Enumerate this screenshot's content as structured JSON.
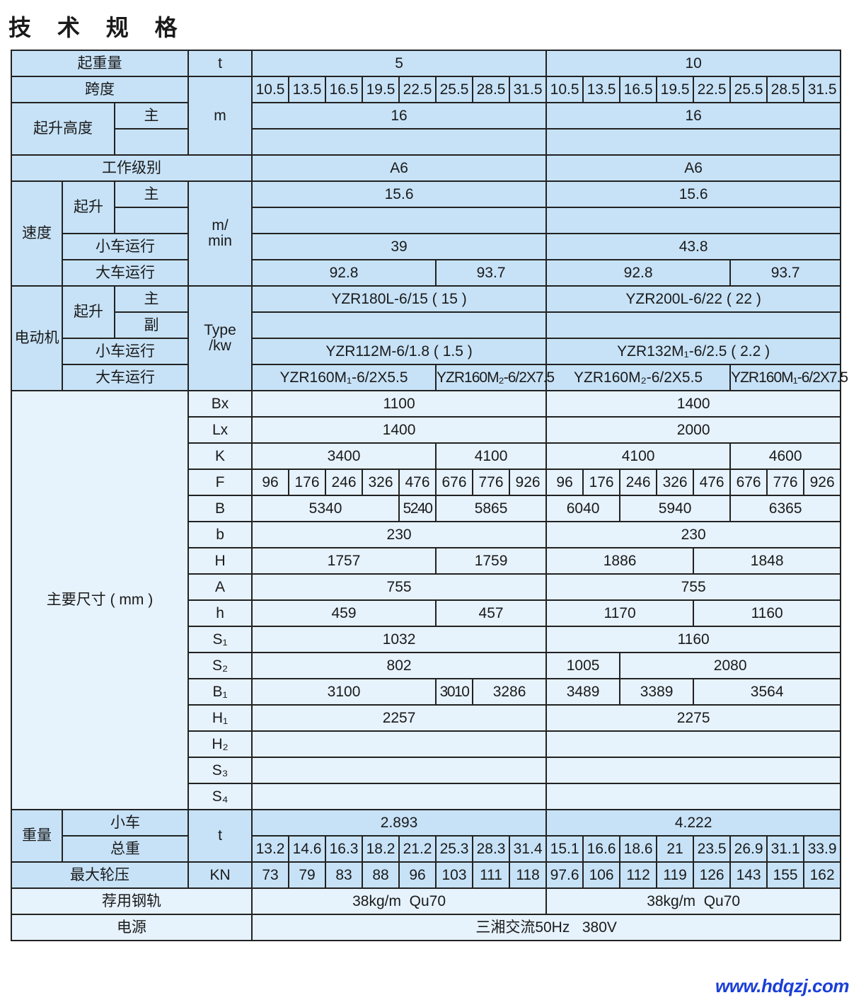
{
  "title": "技 术 规 格",
  "watermark": "www.hdqzj.com",
  "colors": {
    "header_bg": "#c7e2f7",
    "light_bg": "#e6f2fc",
    "border": "#222222",
    "watermark": "#1a3fd6"
  },
  "rows": [
    [
      {
        "t": "起重量",
        "c": 3,
        "k": "d"
      },
      {
        "t": "t",
        "k": "d"
      },
      {
        "t": "5",
        "c": 8,
        "k": "d"
      },
      {
        "t": "10",
        "c": 8,
        "k": "d"
      }
    ],
    [
      {
        "t": "跨度",
        "c": 3,
        "k": "d"
      },
      {
        "t": "m",
        "r": 3,
        "k": "d"
      },
      {
        "t": "10.5",
        "k": "d"
      },
      {
        "t": "13.5",
        "k": "d"
      },
      {
        "t": "16.5",
        "k": "d"
      },
      {
        "t": "19.5",
        "k": "d"
      },
      {
        "t": "22.5",
        "k": "d"
      },
      {
        "t": "25.5",
        "k": "d"
      },
      {
        "t": "28.5",
        "k": "d"
      },
      {
        "t": "31.5",
        "k": "d"
      },
      {
        "t": "10.5",
        "k": "d"
      },
      {
        "t": "13.5",
        "k": "d"
      },
      {
        "t": "16.5",
        "k": "d"
      },
      {
        "t": "19.5",
        "k": "d"
      },
      {
        "t": "22.5",
        "k": "d"
      },
      {
        "t": "25.5",
        "k": "d"
      },
      {
        "t": "28.5",
        "k": "d"
      },
      {
        "t": "31.5",
        "k": "d"
      }
    ],
    [
      {
        "t": "起升高度",
        "c": 2,
        "r": 2,
        "k": "d"
      },
      {
        "t": "主",
        "k": "d"
      },
      {
        "t": "16",
        "c": 8,
        "k": "d"
      },
      {
        "t": "16",
        "c": 8,
        "k": "d"
      }
    ],
    [
      {
        "t": "",
        "k": "d"
      },
      {
        "t": "",
        "c": 8,
        "k": "d"
      },
      {
        "t": "",
        "c": 8,
        "k": "d"
      }
    ],
    [
      {
        "t": "工作级别",
        "c": 4,
        "k": "d"
      },
      {
        "t": "A6",
        "c": 8,
        "k": "d"
      },
      {
        "t": "A6",
        "c": 8,
        "k": "d"
      }
    ],
    [
      {
        "t": "速度",
        "r": 4,
        "k": "d"
      },
      {
        "t": "起升",
        "r": 2,
        "k": "d"
      },
      {
        "t": "主",
        "k": "d"
      },
      {
        "t": "m/\nmin",
        "r": 4,
        "k": "d"
      },
      {
        "t": "15.6",
        "c": 8,
        "k": "d"
      },
      {
        "t": "15.6",
        "c": 8,
        "k": "d"
      }
    ],
    [
      {
        "t": "",
        "k": "d"
      },
      {
        "t": "",
        "c": 8,
        "k": "d"
      },
      {
        "t": "",
        "c": 8,
        "k": "d"
      }
    ],
    [
      {
        "t": "小车运行",
        "c": 2,
        "k": "d"
      },
      {
        "t": "39",
        "c": 8,
        "k": "d"
      },
      {
        "t": "43.8",
        "c": 8,
        "k": "d"
      }
    ],
    [
      {
        "t": "大车运行",
        "c": 2,
        "k": "d"
      },
      {
        "t": "92.8",
        "c": 5,
        "k": "d"
      },
      {
        "t": "93.7",
        "c": 3,
        "k": "d"
      },
      {
        "t": "92.8",
        "c": 5,
        "k": "d"
      },
      {
        "t": "93.7",
        "c": 3,
        "k": "d"
      }
    ],
    [
      {
        "t": "电动机",
        "r": 4,
        "k": "d"
      },
      {
        "t": "起升",
        "r": 2,
        "k": "d"
      },
      {
        "t": "主",
        "k": "d"
      },
      {
        "t": "Type\n/kw",
        "r": 4,
        "k": "d"
      },
      {
        "t": "YZR180L-6/15 ( 15 )",
        "c": 8,
        "k": "d"
      },
      {
        "t": "YZR200L-6/22 ( 22 )",
        "c": 8,
        "k": "d"
      }
    ],
    [
      {
        "t": "副",
        "k": "d"
      },
      {
        "t": "",
        "c": 8,
        "k": "d"
      },
      {
        "t": "",
        "c": 8,
        "k": "d"
      }
    ],
    [
      {
        "t": "小车运行",
        "c": 2,
        "k": "d"
      },
      {
        "t": "YZR112M-6/1.8 ( 1.5 )",
        "c": 8,
        "k": "d"
      },
      {
        "t": "YZR132M₁-6/2.5 ( 2.2 )",
        "c": 8,
        "k": "d"
      }
    ],
    [
      {
        "t": "大车运行",
        "c": 2,
        "k": "d"
      },
      {
        "t": "YZR160M₁-6/2X5.5",
        "c": 5,
        "k": "d"
      },
      {
        "t": "YZR160M₂-6/2X7.5",
        "c": 3,
        "k": "d s"
      },
      {
        "t": "YZR160M₂-6/2X5.5",
        "c": 5,
        "k": "d"
      },
      {
        "t": "YZR160M₁-6/2X7.5",
        "c": 3,
        "k": "d s"
      }
    ],
    [
      {
        "t": "主要尺寸 ( mm )",
        "c": 3,
        "r": 16,
        "k": "l"
      },
      {
        "t": "Bx",
        "k": "l"
      },
      {
        "t": "1100",
        "c": 8,
        "k": "l"
      },
      {
        "t": "1400",
        "c": 8,
        "k": "l"
      }
    ],
    [
      {
        "t": "Lx",
        "k": "l"
      },
      {
        "t": "1400",
        "c": 8,
        "k": "l"
      },
      {
        "t": "2000",
        "c": 8,
        "k": "l"
      }
    ],
    [
      {
        "t": "K",
        "k": "l"
      },
      {
        "t": "3400",
        "c": 5,
        "k": "l"
      },
      {
        "t": "4100",
        "c": 3,
        "k": "l"
      },
      {
        "t": "4100",
        "c": 5,
        "k": "l"
      },
      {
        "t": "4600",
        "c": 3,
        "k": "l"
      }
    ],
    [
      {
        "t": "F",
        "k": "l"
      },
      {
        "t": "96",
        "k": "l"
      },
      {
        "t": "176",
        "k": "l"
      },
      {
        "t": "246",
        "k": "l"
      },
      {
        "t": "326",
        "k": "l"
      },
      {
        "t": "476",
        "k": "l"
      },
      {
        "t": "676",
        "k": "l"
      },
      {
        "t": "776",
        "k": "l"
      },
      {
        "t": "926",
        "k": "l"
      },
      {
        "t": "96",
        "k": "l"
      },
      {
        "t": "176",
        "k": "l"
      },
      {
        "t": "246",
        "k": "l"
      },
      {
        "t": "326",
        "k": "l"
      },
      {
        "t": "476",
        "k": "l"
      },
      {
        "t": "676",
        "k": "l"
      },
      {
        "t": "776",
        "k": "l"
      },
      {
        "t": "926",
        "k": "l"
      }
    ],
    [
      {
        "t": "B",
        "k": "l"
      },
      {
        "t": "5340",
        "c": 4,
        "k": "l"
      },
      {
        "t": "5240",
        "k": "l sm"
      },
      {
        "t": "5865",
        "c": 3,
        "k": "l"
      },
      {
        "t": "6040",
        "c": 2,
        "k": "l"
      },
      {
        "t": "5940",
        "c": 3,
        "k": "l"
      },
      {
        "t": "6365",
        "c": 3,
        "k": "l"
      }
    ],
    [
      {
        "t": "b",
        "k": "l"
      },
      {
        "t": "230",
        "c": 8,
        "k": "l"
      },
      {
        "t": "230",
        "c": 8,
        "k": "l"
      }
    ],
    [
      {
        "t": "H",
        "k": "l"
      },
      {
        "t": "1757",
        "c": 5,
        "k": "l"
      },
      {
        "t": "1759",
        "c": 3,
        "k": "l"
      },
      {
        "t": "1886",
        "c": 4,
        "k": "l"
      },
      {
        "t": "1848",
        "c": 4,
        "k": "l"
      }
    ],
    [
      {
        "t": "A",
        "k": "l"
      },
      {
        "t": "755",
        "c": 8,
        "k": "l"
      },
      {
        "t": "755",
        "c": 8,
        "k": "l"
      }
    ],
    [
      {
        "t": "h",
        "k": "l"
      },
      {
        "t": "459",
        "c": 5,
        "k": "l"
      },
      {
        "t": "457",
        "c": 3,
        "k": "l"
      },
      {
        "t": "1170",
        "c": 4,
        "k": "l"
      },
      {
        "t": "1160",
        "c": 4,
        "k": "l"
      }
    ],
    [
      {
        "t": "S₁",
        "k": "l"
      },
      {
        "t": "1032",
        "c": 8,
        "k": "l"
      },
      {
        "t": "1160",
        "c": 8,
        "k": "l"
      }
    ],
    [
      {
        "t": "S₂",
        "k": "l"
      },
      {
        "t": "802",
        "c": 8,
        "k": "l"
      },
      {
        "t": "1005",
        "c": 2,
        "k": "l"
      },
      {
        "t": "2080",
        "c": 6,
        "k": "l"
      }
    ],
    [
      {
        "t": "B₁",
        "k": "l"
      },
      {
        "t": "3100",
        "c": 5,
        "k": "l"
      },
      {
        "t": "3010",
        "k": "l sm"
      },
      {
        "t": "3286",
        "c": 2,
        "k": "l"
      },
      {
        "t": "3489",
        "c": 2,
        "k": "l"
      },
      {
        "t": "3389",
        "c": 2,
        "k": "l"
      },
      {
        "t": "3564",
        "c": 4,
        "k": "l"
      }
    ],
    [
      {
        "t": "H₁",
        "k": "l"
      },
      {
        "t": "2257",
        "c": 8,
        "k": "l"
      },
      {
        "t": "2275",
        "c": 8,
        "k": "l"
      }
    ],
    [
      {
        "t": "H₂",
        "k": "l"
      },
      {
        "t": "",
        "c": 8,
        "k": "l"
      },
      {
        "t": "",
        "c": 8,
        "k": "l"
      }
    ],
    [
      {
        "t": "S₃",
        "k": "l"
      },
      {
        "t": "",
        "c": 8,
        "k": "l"
      },
      {
        "t": "",
        "c": 8,
        "k": "l"
      }
    ],
    [
      {
        "t": "S₄",
        "k": "l"
      },
      {
        "t": "",
        "c": 8,
        "k": "l"
      },
      {
        "t": "",
        "c": 8,
        "k": "l"
      }
    ],
    [
      {
        "t": "重量",
        "r": 2,
        "k": "d"
      },
      {
        "t": "小车",
        "c": 2,
        "k": "d"
      },
      {
        "t": "t",
        "r": 2,
        "k": "d"
      },
      {
        "t": "2.893",
        "c": 8,
        "k": "d"
      },
      {
        "t": "4.222",
        "c": 8,
        "k": "d"
      }
    ],
    [
      {
        "t": "总重",
        "c": 2,
        "k": "d"
      },
      {
        "t": "13.2",
        "k": "d"
      },
      {
        "t": "14.6",
        "k": "d"
      },
      {
        "t": "16.3",
        "k": "d"
      },
      {
        "t": "18.2",
        "k": "d"
      },
      {
        "t": "21.2",
        "k": "d"
      },
      {
        "t": "25.3",
        "k": "d"
      },
      {
        "t": "28.3",
        "k": "d"
      },
      {
        "t": "31.4",
        "k": "d"
      },
      {
        "t": "15.1",
        "k": "d"
      },
      {
        "t": "16.6",
        "k": "d"
      },
      {
        "t": "18.6",
        "k": "d"
      },
      {
        "t": "21",
        "k": "d"
      },
      {
        "t": "23.5",
        "k": "d"
      },
      {
        "t": "26.9",
        "k": "d"
      },
      {
        "t": "31.1",
        "k": "d"
      },
      {
        "t": "33.9",
        "k": "d"
      }
    ],
    [
      {
        "t": "最大轮压",
        "c": 3,
        "k": "d"
      },
      {
        "t": "KN",
        "k": "d"
      },
      {
        "t": "73",
        "k": "d"
      },
      {
        "t": "79",
        "k": "d"
      },
      {
        "t": "83",
        "k": "d"
      },
      {
        "t": "88",
        "k": "d"
      },
      {
        "t": "96",
        "k": "d"
      },
      {
        "t": "103",
        "k": "d"
      },
      {
        "t": "111",
        "k": "d"
      },
      {
        "t": "118",
        "k": "d"
      },
      {
        "t": "97.6",
        "k": "d"
      },
      {
        "t": "106",
        "k": "d"
      },
      {
        "t": "112",
        "k": "d"
      },
      {
        "t": "119",
        "k": "d"
      },
      {
        "t": "126",
        "k": "d"
      },
      {
        "t": "143",
        "k": "d"
      },
      {
        "t": "155",
        "k": "d"
      },
      {
        "t": "162",
        "k": "d"
      }
    ],
    [
      {
        "t": "荐用钢轨",
        "c": 4,
        "k": "l"
      },
      {
        "t": "38kg/m  Qu70",
        "c": 8,
        "k": "l"
      },
      {
        "t": "38kg/m  Qu70",
        "c": 8,
        "k": "l"
      }
    ],
    [
      {
        "t": "电源",
        "c": 4,
        "k": "l"
      },
      {
        "t": "三湘交流50Hz   380V",
        "c": 16,
        "k": "l"
      }
    ]
  ]
}
